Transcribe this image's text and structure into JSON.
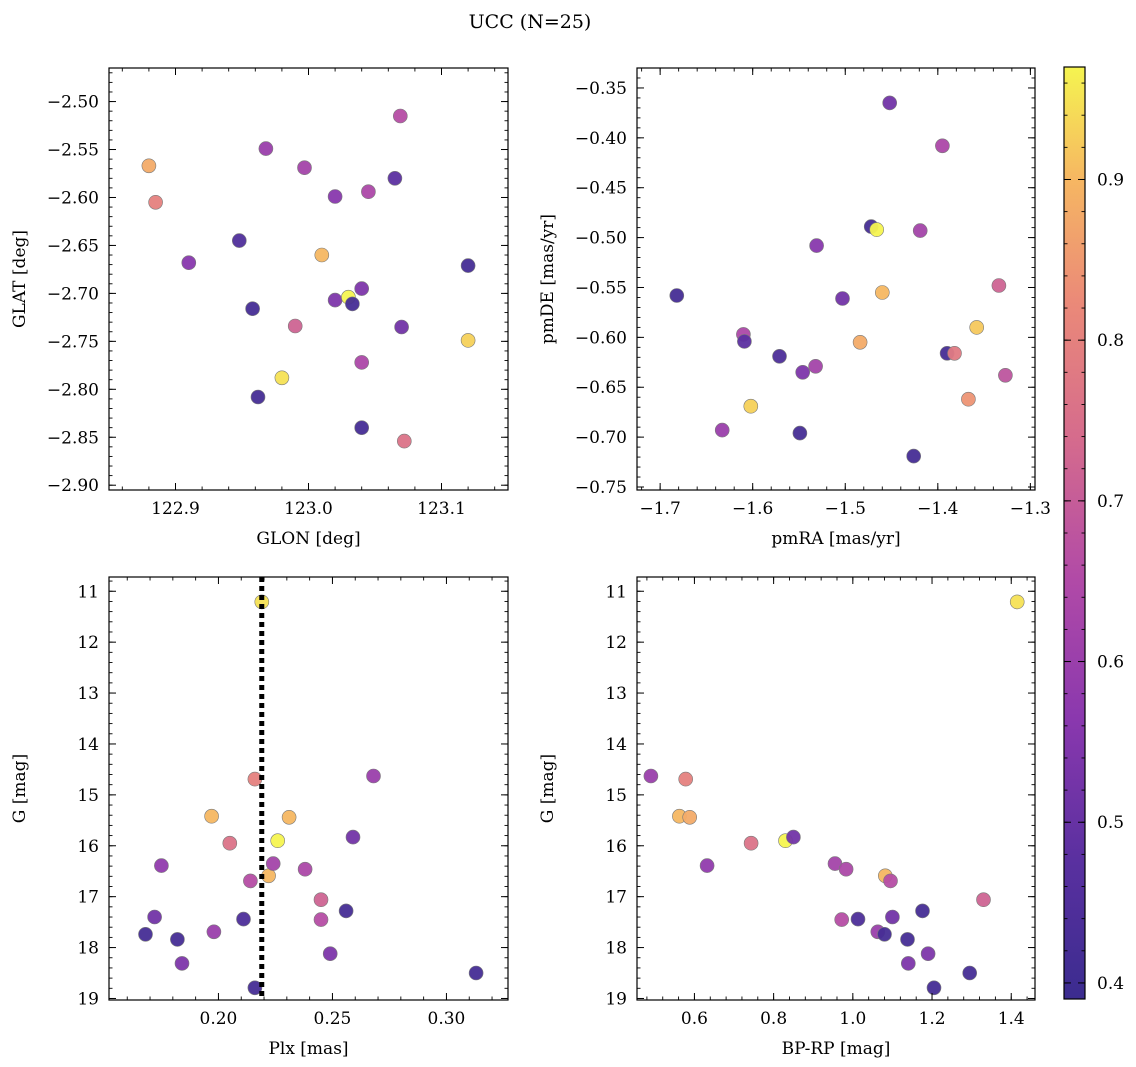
{
  "title": "UCC (N=25)",
  "colorbar": {
    "range": [
      0.39,
      0.97
    ],
    "ticks": [
      0.4,
      0.5,
      0.6,
      0.7,
      0.8,
      0.9
    ],
    "tick_labels": [
      "0.4",
      "0.5",
      "0.6",
      "0.7",
      "0.8",
      "0.9"
    ],
    "colormap": "plasma"
  },
  "chart_data": [
    {
      "type": "scatter",
      "name": "glon-glat",
      "xlabel": "GLON [deg]",
      "ylabel": "GLAT [deg]",
      "xlim": [
        122.85,
        123.15
      ],
      "ylim": [
        -2.905,
        -2.465
      ],
      "xticks": [
        122.9,
        123.0,
        123.1
      ],
      "xtick_labels": [
        "122.9",
        "123.0",
        "123.1"
      ],
      "yticks": [
        -2.9,
        -2.85,
        -2.8,
        -2.75,
        -2.7,
        -2.65,
        -2.6,
        -2.55,
        -2.5
      ],
      "ytick_labels": [
        "−2.90",
        "−2.85",
        "−2.80",
        "−2.75",
        "−2.70",
        "−2.65",
        "−2.60",
        "−2.55",
        "−2.50"
      ],
      "points": [
        {
          "x": 122.88,
          "y": -2.567,
          "c": 0.88
        },
        {
          "x": 122.885,
          "y": -2.605,
          "c": 0.8
        },
        {
          "x": 122.91,
          "y": -2.668,
          "c": 0.56
        },
        {
          "x": 122.948,
          "y": -2.645,
          "c": 0.45
        },
        {
          "x": 122.958,
          "y": -2.716,
          "c": 0.42
        },
        {
          "x": 122.962,
          "y": -2.808,
          "c": 0.42
        },
        {
          "x": 122.968,
          "y": -2.549,
          "c": 0.6
        },
        {
          "x": 122.98,
          "y": -2.788,
          "c": 0.95
        },
        {
          "x": 122.99,
          "y": -2.734,
          "c": 0.72
        },
        {
          "x": 122.997,
          "y": -2.569,
          "c": 0.62
        },
        {
          "x": 123.01,
          "y": -2.66,
          "c": 0.9
        },
        {
          "x": 123.02,
          "y": -2.599,
          "c": 0.56
        },
        {
          "x": 123.02,
          "y": -2.707,
          "c": 0.54
        },
        {
          "x": 123.03,
          "y": -2.704,
          "c": 0.97
        },
        {
          "x": 123.033,
          "y": -2.711,
          "c": 0.42
        },
        {
          "x": 123.04,
          "y": -2.695,
          "c": 0.54
        },
        {
          "x": 123.04,
          "y": -2.772,
          "c": 0.64
        },
        {
          "x": 123.04,
          "y": -2.84,
          "c": 0.42
        },
        {
          "x": 123.045,
          "y": -2.594,
          "c": 0.64
        },
        {
          "x": 123.065,
          "y": -2.58,
          "c": 0.48
        },
        {
          "x": 123.069,
          "y": -2.515,
          "c": 0.66
        },
        {
          "x": 123.07,
          "y": -2.735,
          "c": 0.52
        },
        {
          "x": 123.072,
          "y": -2.854,
          "c": 0.76
        },
        {
          "x": 123.12,
          "y": -2.671,
          "c": 0.42
        },
        {
          "x": 123.12,
          "y": -2.749,
          "c": 0.93
        }
      ]
    },
    {
      "type": "scatter",
      "name": "pmra-pmde",
      "xlabel": "pmRA [mas/yr]",
      "ylabel": "pmDE [mas/yr]",
      "xlim": [
        -1.725,
        -1.295
      ],
      "ylim": [
        -0.753,
        -0.33
      ],
      "xticks": [
        -1.7,
        -1.6,
        -1.5,
        -1.4,
        -1.3
      ],
      "xtick_labels": [
        "−1.7",
        "−1.6",
        "−1.5",
        "−1.4",
        "−1.3"
      ],
      "yticks": [
        -0.75,
        -0.7,
        -0.65,
        -0.6,
        -0.55,
        -0.5,
        -0.45,
        -0.4,
        -0.35
      ],
      "ytick_labels": [
        "−0.75",
        "−0.70",
        "−0.65",
        "−0.60",
        "−0.55",
        "−0.50",
        "−0.45",
        "−0.40",
        "−0.35"
      ],
      "points": [
        {
          "x": -1.682,
          "y": -0.558,
          "c": 0.42
        },
        {
          "x": -1.633,
          "y": -0.693,
          "c": 0.6
        },
        {
          "x": -1.61,
          "y": -0.597,
          "c": 0.64
        },
        {
          "x": -1.609,
          "y": -0.604,
          "c": 0.48
        },
        {
          "x": -1.602,
          "y": -0.669,
          "c": 0.93
        },
        {
          "x": -1.571,
          "y": -0.619,
          "c": 0.44
        },
        {
          "x": -1.549,
          "y": -0.696,
          "c": 0.42
        },
        {
          "x": -1.546,
          "y": -0.635,
          "c": 0.54
        },
        {
          "x": -1.532,
          "y": -0.629,
          "c": 0.62
        },
        {
          "x": -1.531,
          "y": -0.508,
          "c": 0.56
        },
        {
          "x": -1.503,
          "y": -0.561,
          "c": 0.52
        },
        {
          "x": -1.484,
          "y": -0.605,
          "c": 0.88
        },
        {
          "x": -1.472,
          "y": -0.489,
          "c": 0.42
        },
        {
          "x": -1.466,
          "y": -0.492,
          "c": 0.97
        },
        {
          "x": -1.46,
          "y": -0.555,
          "c": 0.9
        },
        {
          "x": -1.452,
          "y": -0.365,
          "c": 0.52
        },
        {
          "x": -1.426,
          "y": -0.719,
          "c": 0.42
        },
        {
          "x": -1.419,
          "y": -0.493,
          "c": 0.62
        },
        {
          "x": -1.395,
          "y": -0.408,
          "c": 0.64
        },
        {
          "x": -1.39,
          "y": -0.616,
          "c": 0.42
        },
        {
          "x": -1.382,
          "y": -0.616,
          "c": 0.78
        },
        {
          "x": -1.367,
          "y": -0.662,
          "c": 0.84
        },
        {
          "x": -1.358,
          "y": -0.59,
          "c": 0.92
        },
        {
          "x": -1.334,
          "y": -0.548,
          "c": 0.72
        },
        {
          "x": -1.327,
          "y": -0.638,
          "c": 0.68
        }
      ]
    },
    {
      "type": "scatter",
      "name": "plx-g",
      "xlabel": "Plx [mas]",
      "ylabel": "G [mag]",
      "xlim": [
        0.152,
        0.327
      ],
      "ylim": [
        19.03,
        10.72
      ],
      "y_inverted": true,
      "xticks": [
        0.2,
        0.25,
        0.3
      ],
      "xtick_labels": [
        "0.20",
        "0.25",
        "0.30"
      ],
      "yticks": [
        11,
        12,
        13,
        14,
        15,
        16,
        17,
        18,
        19
      ],
      "ytick_labels": [
        "11",
        "12",
        "13",
        "14",
        "15",
        "16",
        "17",
        "18",
        "19"
      ],
      "vline": 0.219,
      "points": [
        {
          "x": 0.168,
          "y": 17.74,
          "c": 0.42
        },
        {
          "x": 0.172,
          "y": 17.4,
          "c": 0.52
        },
        {
          "x": 0.175,
          "y": 16.39,
          "c": 0.58
        },
        {
          "x": 0.182,
          "y": 17.84,
          "c": 0.42
        },
        {
          "x": 0.184,
          "y": 18.31,
          "c": 0.54
        },
        {
          "x": 0.197,
          "y": 15.42,
          "c": 0.9
        },
        {
          "x": 0.198,
          "y": 17.69,
          "c": 0.6
        },
        {
          "x": 0.205,
          "y": 15.95,
          "c": 0.76
        },
        {
          "x": 0.211,
          "y": 17.44,
          "c": 0.44
        },
        {
          "x": 0.214,
          "y": 16.69,
          "c": 0.66
        },
        {
          "x": 0.216,
          "y": 14.69,
          "c": 0.8
        },
        {
          "x": 0.216,
          "y": 18.79,
          "c": 0.42
        },
        {
          "x": 0.219,
          "y": 11.21,
          "c": 0.95
        },
        {
          "x": 0.222,
          "y": 16.59,
          "c": 0.9
        },
        {
          "x": 0.224,
          "y": 16.35,
          "c": 0.62
        },
        {
          "x": 0.226,
          "y": 15.9,
          "c": 0.97
        },
        {
          "x": 0.231,
          "y": 15.44,
          "c": 0.9
        },
        {
          "x": 0.238,
          "y": 16.46,
          "c": 0.64
        },
        {
          "x": 0.245,
          "y": 17.06,
          "c": 0.72
        },
        {
          "x": 0.245,
          "y": 17.45,
          "c": 0.66
        },
        {
          "x": 0.249,
          "y": 18.12,
          "c": 0.54
        },
        {
          "x": 0.256,
          "y": 17.28,
          "c": 0.42
        },
        {
          "x": 0.259,
          "y": 15.83,
          "c": 0.52
        },
        {
          "x": 0.268,
          "y": 14.63,
          "c": 0.6
        },
        {
          "x": 0.313,
          "y": 18.5,
          "c": 0.42
        }
      ]
    },
    {
      "type": "scatter",
      "name": "bprp-g",
      "xlabel": "BP-RP [mag]",
      "ylabel": "G [mag]",
      "xlim": [
        0.455,
        1.46
      ],
      "ylim": [
        19.03,
        10.72
      ],
      "y_inverted": true,
      "xticks": [
        0.6,
        0.8,
        1.0,
        1.2,
        1.4
      ],
      "xtick_labels": [
        "0.6",
        "0.8",
        "1.0",
        "1.2",
        "1.4"
      ],
      "yticks": [
        11,
        12,
        13,
        14,
        15,
        16,
        17,
        18,
        19
      ],
      "ytick_labels": [
        "11",
        "12",
        "13",
        "14",
        "15",
        "16",
        "17",
        "18",
        "19"
      ],
      "points": [
        {
          "x": 0.49,
          "y": 14.63,
          "c": 0.6
        },
        {
          "x": 0.562,
          "y": 15.42,
          "c": 0.9
        },
        {
          "x": 0.578,
          "y": 14.69,
          "c": 0.8
        },
        {
          "x": 0.588,
          "y": 15.44,
          "c": 0.88
        },
        {
          "x": 0.632,
          "y": 16.39,
          "c": 0.58
        },
        {
          "x": 0.743,
          "y": 15.95,
          "c": 0.76
        },
        {
          "x": 0.83,
          "y": 15.9,
          "c": 0.97
        },
        {
          "x": 0.85,
          "y": 15.83,
          "c": 0.52
        },
        {
          "x": 0.955,
          "y": 16.35,
          "c": 0.62
        },
        {
          "x": 0.972,
          "y": 17.45,
          "c": 0.66
        },
        {
          "x": 0.983,
          "y": 16.46,
          "c": 0.64
        },
        {
          "x": 1.013,
          "y": 17.44,
          "c": 0.44
        },
        {
          "x": 1.063,
          "y": 17.69,
          "c": 0.6
        },
        {
          "x": 1.08,
          "y": 17.74,
          "c": 0.42
        },
        {
          "x": 1.082,
          "y": 16.59,
          "c": 0.9
        },
        {
          "x": 1.095,
          "y": 16.69,
          "c": 0.66
        },
        {
          "x": 1.1,
          "y": 17.4,
          "c": 0.52
        },
        {
          "x": 1.138,
          "y": 17.84,
          "c": 0.42
        },
        {
          "x": 1.14,
          "y": 18.31,
          "c": 0.54
        },
        {
          "x": 1.176,
          "y": 17.28,
          "c": 0.42
        },
        {
          "x": 1.19,
          "y": 18.12,
          "c": 0.54
        },
        {
          "x": 1.205,
          "y": 18.79,
          "c": 0.42
        },
        {
          "x": 1.295,
          "y": 18.5,
          "c": 0.42
        },
        {
          "x": 1.33,
          "y": 17.06,
          "c": 0.72
        },
        {
          "x": 1.415,
          "y": 11.21,
          "c": 0.95
        }
      ]
    }
  ]
}
